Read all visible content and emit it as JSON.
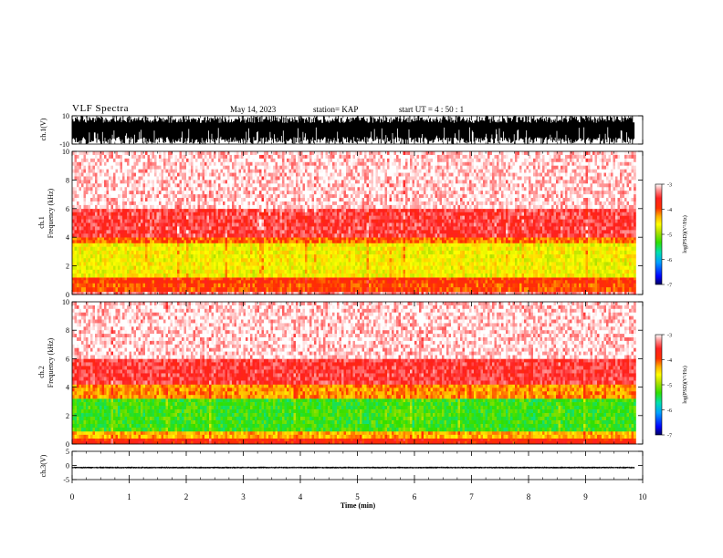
{
  "header": {
    "title": "VLF Spectra",
    "date": "May 14, 2023",
    "station": "station= KAP",
    "start": "start  UT  =   4 : 50 : 1"
  },
  "chart_data": [
    {
      "type": "line",
      "panel": "ch1-waveform",
      "ylabel": "ch.1(V)",
      "ylim": [
        -10,
        10
      ],
      "yticks": [
        "10",
        "-10"
      ],
      "x_range": [
        0,
        9.85
      ],
      "description_values": {
        "typical_min": -10,
        "typical_max": 10
      }
    },
    {
      "type": "heatmap",
      "panel": "ch1-spectrogram",
      "ylabel": "ch.1\nFrequency (kHz)",
      "ylabel_line1": "ch.1",
      "ylabel_line2": "Frequency  (kHz)",
      "ylim": [
        0,
        10
      ],
      "yticks": [
        "0",
        "2",
        "4",
        "6",
        "8",
        "10"
      ],
      "x_range": [
        0,
        9.85
      ],
      "bands": [
        {
          "f_low": 0.0,
          "f_high": 0.2,
          "level": -3.3
        },
        {
          "f_low": 0.2,
          "f_high": 0.8,
          "level": -4.0
        },
        {
          "f_low": 0.8,
          "f_high": 1.2,
          "level": -3.9
        },
        {
          "f_low": 1.2,
          "f_high": 3.6,
          "level": -4.6
        },
        {
          "f_low": 3.6,
          "f_high": 4.0,
          "level": -4.1
        },
        {
          "f_low": 4.0,
          "f_high": 6.0,
          "level": -3.5
        },
        {
          "f_low": 6.0,
          "f_high": 10.0,
          "level": -3.1
        }
      ]
    },
    {
      "type": "heatmap",
      "panel": "ch2-spectrogram",
      "ylabel": "ch.2\nFrequency (kHz)",
      "ylabel_line1": "ch.2",
      "ylabel_line2": "Frequency  (kHz)",
      "ylim": [
        0,
        10
      ],
      "yticks": [
        "0",
        "2",
        "4",
        "6",
        "8",
        "10"
      ],
      "x_range": [
        0,
        9.85
      ],
      "bands": [
        {
          "f_low": 0.0,
          "f_high": 0.4,
          "level": -3.8
        },
        {
          "f_low": 0.4,
          "f_high": 0.9,
          "level": -4.3
        },
        {
          "f_low": 0.9,
          "f_high": 3.2,
          "level": -5.3
        },
        {
          "f_low": 3.2,
          "f_high": 4.2,
          "level": -4.2
        },
        {
          "f_low": 4.2,
          "f_high": 6.0,
          "level": -3.5
        },
        {
          "f_low": 6.0,
          "f_high": 10.0,
          "level": -3.1
        }
      ]
    },
    {
      "type": "line",
      "panel": "ch3-waveform",
      "ylabel": "ch.3(V)",
      "ylim": [
        -5,
        5
      ],
      "yticks": [
        "5",
        "0",
        "-5"
      ],
      "x_range": [
        0,
        9.85
      ],
      "description_values": {
        "typical_min": -1,
        "typical_max": -0.5
      }
    }
  ],
  "x_axis": {
    "label": "Time  (min)",
    "ticks": [
      "0",
      "1",
      "2",
      "3",
      "4",
      "5",
      "6",
      "7",
      "8",
      "9",
      "10"
    ],
    "xlim": [
      0,
      10
    ]
  },
  "colorbar": {
    "label": "log(PSD)(V²/Hz)",
    "ticks": [
      "-3",
      "-4",
      "-5",
      "-6",
      "-7"
    ],
    "range": [
      -7,
      -3
    ],
    "colors": [
      "#000060",
      "#0000ff",
      "#00b0ff",
      "#00e0a0",
      "#30e000",
      "#b0e000",
      "#ffff00",
      "#ffc000",
      "#ff6000",
      "#ff0000",
      "#ff8080",
      "#ffffff"
    ]
  },
  "colors": {
    "trace": "#000000",
    "frame": "#000000"
  }
}
